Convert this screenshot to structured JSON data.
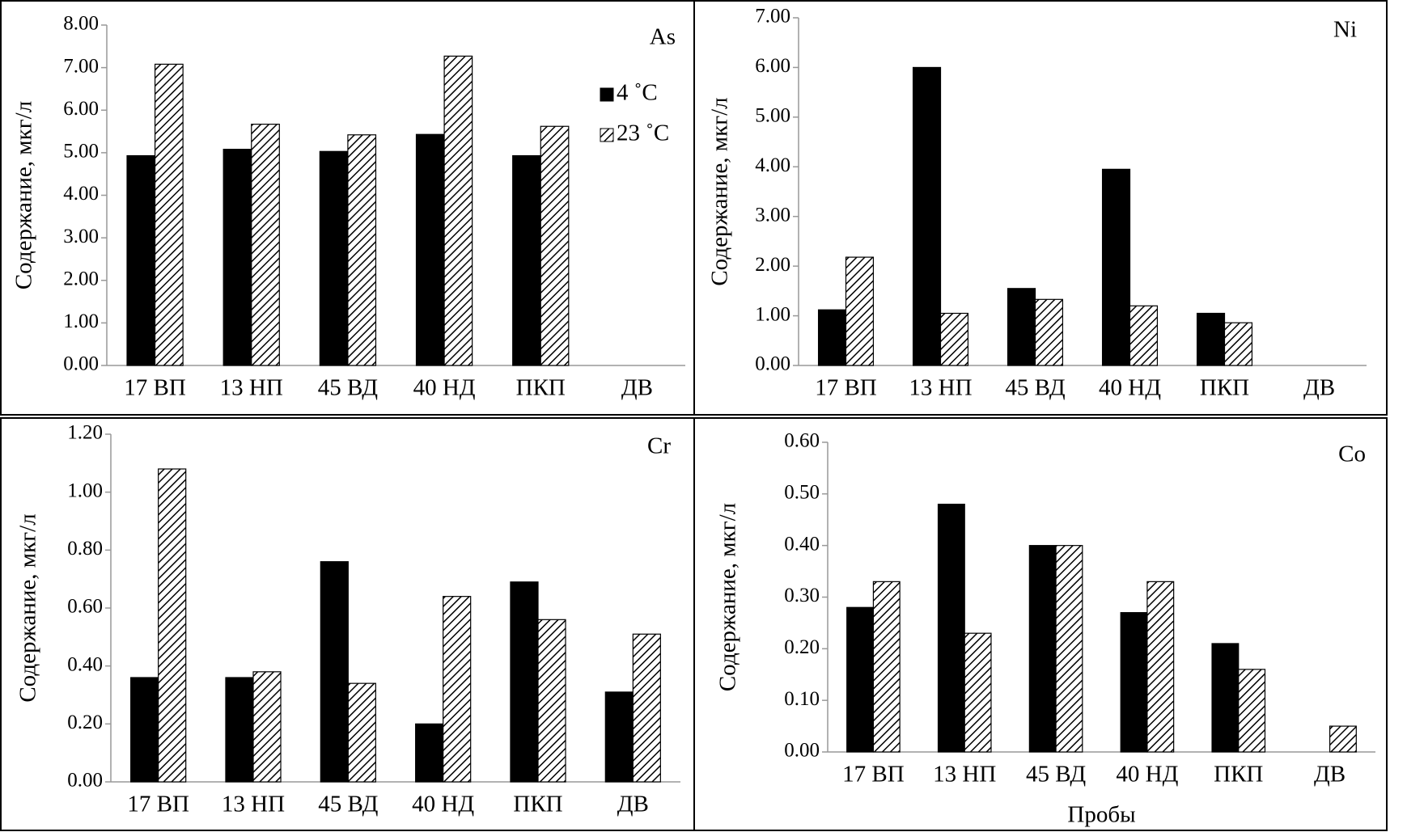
{
  "chart_data": [
    {
      "type": "bar",
      "title": "As",
      "ylabel": "Содержание, мкг/л",
      "categories": [
        "17 ВП",
        "13 НП",
        "45 ВД",
        "40 НД",
        "ПКП",
        "ДВ"
      ],
      "series": [
        {
          "name": "4 ˚C",
          "color": "#000000",
          "values": [
            4.93,
            5.08,
            5.03,
            5.43,
            4.93,
            null
          ]
        },
        {
          "name": "23 ˚C",
          "color": "#000000",
          "hatch": true,
          "values": [
            7.08,
            5.67,
            5.42,
            7.27,
            5.62,
            null
          ]
        }
      ],
      "legend": "upper right",
      "ylim": [
        0,
        8
      ],
      "yticks": [
        {
          "value": 0,
          "label": "0.00"
        },
        {
          "value": 1,
          "label": "1.00"
        },
        {
          "value": 2,
          "label": "2.00"
        },
        {
          "value": 3,
          "label": "3.00"
        },
        {
          "value": 4,
          "label": "4.00"
        },
        {
          "value": 5,
          "label": "5.00"
        },
        {
          "value": 6,
          "label": "6.00"
        },
        {
          "value": 7,
          "label": "7.00"
        },
        {
          "value": 8,
          "label": "8.00"
        }
      ]
    },
    {
      "type": "bar",
      "title": "Ni",
      "ylabel": "Содержание, мкг/л",
      "categories": [
        "17 ВП",
        "13 НП",
        "45 ВД",
        "40 НД",
        "ПКП",
        "ДВ"
      ],
      "series": [
        {
          "color": "#000000",
          "values": [
            1.12,
            6.0,
            1.55,
            3.95,
            1.05,
            null
          ]
        },
        {
          "color": "#000000",
          "hatch": true,
          "values": [
            2.18,
            1.05,
            1.33,
            1.2,
            0.86,
            null
          ]
        }
      ],
      "ylim": [
        0,
        7
      ],
      "yticks": [
        {
          "value": 0,
          "label": "0.00"
        },
        {
          "value": 1,
          "label": "1.00"
        },
        {
          "value": 2,
          "label": "2.00"
        },
        {
          "value": 3,
          "label": "3.00"
        },
        {
          "value": 4,
          "label": "4.00"
        },
        {
          "value": 5,
          "label": "5.00"
        },
        {
          "value": 6,
          "label": "6.00"
        },
        {
          "value": 7,
          "label": "7.00"
        }
      ]
    },
    {
      "type": "bar",
      "title": "Cr",
      "ylabel": "Содержание, мкг/л",
      "categories": [
        "17 ВП",
        "13 НП",
        "45 ВД",
        "40 НД",
        "ПКП",
        "ДВ"
      ],
      "series": [
        {
          "color": "#000000",
          "values": [
            0.36,
            0.36,
            0.76,
            0.2,
            0.69,
            0.31
          ]
        },
        {
          "color": "#000000",
          "hatch": true,
          "values": [
            1.08,
            0.38,
            0.34,
            0.64,
            0.56,
            0.51
          ]
        }
      ],
      "ylim": [
        0,
        1.2
      ],
      "yticks": [
        {
          "value": 0,
          "label": "0.00"
        },
        {
          "value": 0.2,
          "label": "0.20"
        },
        {
          "value": 0.4,
          "label": "0.40"
        },
        {
          "value": 0.6,
          "label": "0.60"
        },
        {
          "value": 0.8,
          "label": "0.80"
        },
        {
          "value": 1.0,
          "label": "1.00"
        },
        {
          "value": 1.2,
          "label": "1.20"
        }
      ]
    },
    {
      "type": "bar",
      "title": "Co",
      "ylabel": "Содержание, мкг/л",
      "xlabel": "Пробы",
      "categories": [
        "17 ВП",
        "13 НП",
        "45 ВД",
        "40 НД",
        "ПКП",
        "ДВ"
      ],
      "series": [
        {
          "color": "#000000",
          "values": [
            0.28,
            0.48,
            0.4,
            0.27,
            0.21,
            0.0
          ]
        },
        {
          "color": "#000000",
          "hatch": true,
          "values": [
            0.33,
            0.23,
            0.4,
            0.33,
            0.16,
            0.05
          ]
        }
      ],
      "ylim": [
        0,
        0.6
      ],
      "yticks": [
        {
          "value": 0,
          "label": "0.00"
        },
        {
          "value": 0.1,
          "label": "0.10"
        },
        {
          "value": 0.2,
          "label": "0.20"
        },
        {
          "value": 0.3,
          "label": "0.30"
        },
        {
          "value": 0.4,
          "label": "0.40"
        },
        {
          "value": 0.5,
          "label": "0.50"
        },
        {
          "value": 0.6,
          "label": "0.60"
        }
      ]
    }
  ]
}
